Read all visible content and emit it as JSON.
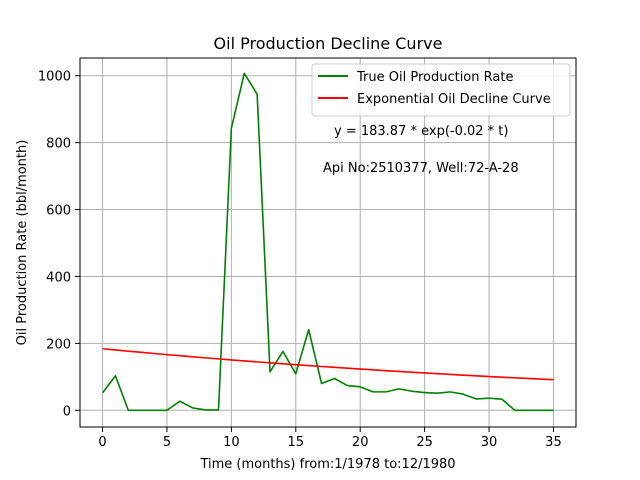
{
  "chart_data": {
    "type": "line",
    "title": "Oil Production Decline Curve",
    "xlabel": "Time (months) from:1/1978 to:12/1980",
    "ylabel": "Oil Production Rate (bbl/month)",
    "xlim": [
      -1.75,
      36.75
    ],
    "ylim": [
      -50,
      1053
    ],
    "xticks": [
      0,
      5,
      10,
      15,
      20,
      25,
      30,
      35
    ],
    "yticks": [
      0,
      200,
      400,
      600,
      800,
      1000
    ],
    "grid": true,
    "legend_position": "top-right",
    "series": [
      {
        "name": "True Oil Production Rate",
        "color": "#008000",
        "x": [
          0,
          1,
          2,
          3,
          4,
          5,
          6,
          7,
          8,
          9,
          10,
          11,
          12,
          13,
          14,
          15,
          16,
          17,
          18,
          19,
          20,
          21,
          22,
          23,
          24,
          25,
          26,
          27,
          28,
          29,
          30,
          31,
          32,
          33,
          34,
          35
        ],
        "values": [
          52,
          103,
          0,
          0,
          0,
          0,
          27,
          7,
          1,
          1,
          843,
          1007,
          945,
          115,
          176,
          109,
          241,
          80,
          95,
          74,
          70,
          55,
          55,
          64,
          57,
          53,
          51,
          55,
          48,
          34,
          36,
          33,
          0,
          0,
          0,
          0
        ]
      },
      {
        "name": "Exponential Oil Decline Curve",
        "color": "#ff0000",
        "x": [
          0,
          1,
          2,
          3,
          4,
          5,
          6,
          7,
          8,
          9,
          10,
          11,
          12,
          13,
          14,
          15,
          16,
          17,
          18,
          19,
          20,
          21,
          22,
          23,
          24,
          25,
          26,
          27,
          28,
          29,
          30,
          31,
          32,
          33,
          34,
          35
        ],
        "values": [
          183.87,
          180.23,
          176.66,
          173.16,
          169.73,
          166.37,
          163.08,
          159.85,
          156.68,
          153.58,
          150.54,
          147.56,
          144.64,
          141.77,
          138.96,
          136.21,
          133.51,
          130.87,
          128.28,
          125.74,
          123.25,
          120.81,
          118.41,
          116.07,
          113.77,
          111.52,
          109.31,
          107.14,
          105.02,
          102.94,
          100.9,
          98.91,
          96.95,
          95.03,
          93.15,
          91.3
        ]
      }
    ],
    "annotations": [
      "y = 183.87 * exp(-0.02 * t)",
      "Api No:2510377, Well:72-A-28"
    ]
  }
}
